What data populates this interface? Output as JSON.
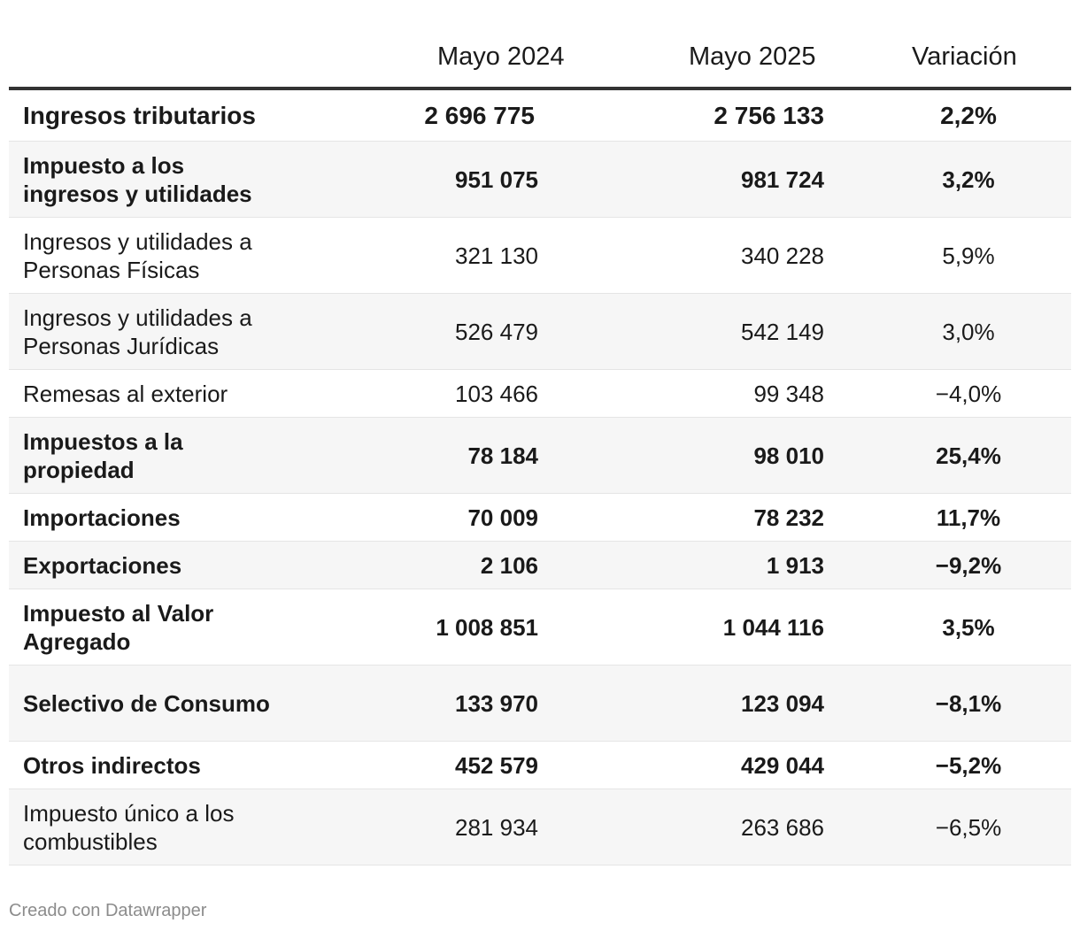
{
  "chart_data": {
    "type": "table",
    "columns": [
      "",
      "Mayo 2024",
      "Mayo 2025",
      "Variación"
    ],
    "rows": [
      {
        "label": "Ingresos tributarios",
        "mayo_2024": "2 696 775",
        "mayo_2025": "2 756 133",
        "variacion": "2,2%",
        "bold": true
      },
      {
        "label": "Impuesto a los ingresos y utilidades",
        "mayo_2024": "951 075",
        "mayo_2025": "981 724",
        "variacion": "3,2%",
        "bold": true
      },
      {
        "label": "Ingresos y utilidades a Personas Físicas",
        "mayo_2024": "321 130",
        "mayo_2025": "340 228",
        "variacion": "5,9%",
        "bold": false
      },
      {
        "label": "Ingresos y utilidades a Personas Jurídicas",
        "mayo_2024": "526 479",
        "mayo_2025": "542 149",
        "variacion": "3,0%",
        "bold": false
      },
      {
        "label": "Remesas al exterior",
        "mayo_2024": "103 466",
        "mayo_2025": "99 348",
        "variacion": "−4,0%",
        "bold": false
      },
      {
        "label": "Impuestos a la propiedad",
        "mayo_2024": "78 184",
        "mayo_2025": "98 010",
        "variacion": "25,4%",
        "bold": true
      },
      {
        "label": "Importaciones",
        "mayo_2024": "70 009",
        "mayo_2025": "78 232",
        "variacion": "11,7%",
        "bold": true
      },
      {
        "label": "Exportaciones",
        "mayo_2024": "2 106",
        "mayo_2025": "1 913",
        "variacion": "−9,2%",
        "bold": true
      },
      {
        "label": "Impuesto al Valor Agregado",
        "mayo_2024": "1 008 851",
        "mayo_2025": "1 044 116",
        "variacion": "3,5%",
        "bold": true
      },
      {
        "label": "Selectivo de Consumo",
        "mayo_2024": "133 970",
        "mayo_2025": "123 094",
        "variacion": "−8,1%",
        "bold": true
      },
      {
        "label": "Otros indirectos",
        "mayo_2024": "452 579",
        "mayo_2025": "429 044",
        "variacion": "−5,2%",
        "bold": true
      },
      {
        "label": "Impuesto único a los combustibles",
        "mayo_2024": "281 934",
        "mayo_2025": "263 686",
        "variacion": "−6,5%",
        "bold": false
      }
    ]
  },
  "footer": "Creado con Datawrapper",
  "colors": {
    "header_rule": "#333333",
    "row_divider": "#e5e5e5",
    "shaded_row": "#f6f6f6",
    "footer_text": "#8c8c8c"
  }
}
